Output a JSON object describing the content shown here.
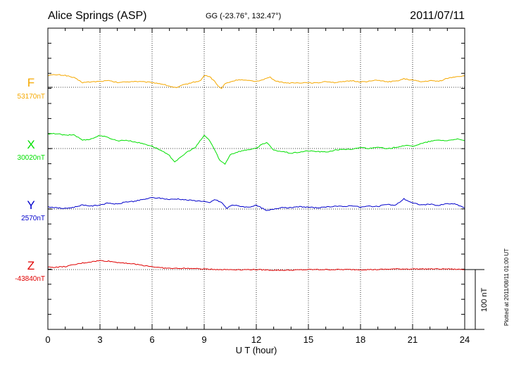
{
  "header": {
    "station": "Alice Springs (ASP)",
    "coords": "GG (-23.76°, 132.47°)",
    "date": "2011/07/11"
  },
  "side_note": "Plotted at 2011/08/11 01:00 UT",
  "chart_data": {
    "type": "line",
    "title": "Alice Springs (ASP)",
    "xlabel": "U T (hour)",
    "xlim": [
      0,
      24
    ],
    "x_ticks": [
      "0",
      "3",
      "6",
      "9",
      "12",
      "15",
      "18",
      "21",
      "24"
    ],
    "grid": true,
    "scale_bar": {
      "label": "100 nT",
      "value_nT": 100
    },
    "series": [
      {
        "name": "F",
        "baseline_label": "53170nT",
        "color": "#f5a800",
        "baseline_nT": 53170,
        "points": [
          [
            0,
            20
          ],
          [
            0.5,
            21
          ],
          [
            1,
            20
          ],
          [
            1.5,
            16
          ],
          [
            2,
            8
          ],
          [
            2.5,
            9
          ],
          [
            3,
            10
          ],
          [
            3.5,
            11
          ],
          [
            4,
            8
          ],
          [
            4.5,
            9
          ],
          [
            5,
            10
          ],
          [
            5.5,
            9
          ],
          [
            6,
            8
          ],
          [
            6.5,
            6
          ],
          [
            7,
            2
          ],
          [
            7.4,
            -1
          ],
          [
            7.8,
            4
          ],
          [
            8.3,
            8
          ],
          [
            8.8,
            11
          ],
          [
            9,
            20
          ],
          [
            9.3,
            18
          ],
          [
            9.6,
            10
          ],
          [
            9.8,
            2
          ],
          [
            10,
            -2
          ],
          [
            10.2,
            6
          ],
          [
            10.5,
            9
          ],
          [
            11,
            13
          ],
          [
            11.5,
            11
          ],
          [
            12,
            10
          ],
          [
            12.5,
            14
          ],
          [
            12.8,
            17
          ],
          [
            13,
            12
          ],
          [
            13.5,
            8
          ],
          [
            14,
            7
          ],
          [
            15,
            8
          ],
          [
            15.5,
            7
          ],
          [
            16,
            10
          ],
          [
            16.5,
            8
          ],
          [
            17,
            9
          ],
          [
            17.5,
            11
          ],
          [
            18,
            9
          ],
          [
            18.5,
            10
          ],
          [
            19,
            12
          ],
          [
            19.5,
            9
          ],
          [
            20,
            10
          ],
          [
            20.5,
            14
          ],
          [
            21,
            12
          ],
          [
            21.5,
            9
          ],
          [
            22,
            11
          ],
          [
            22.5,
            10
          ],
          [
            23,
            15
          ],
          [
            23.5,
            18
          ],
          [
            24,
            19
          ]
        ]
      },
      {
        "name": "X",
        "baseline_label": "30020nT",
        "color": "#00e000",
        "baseline_nT": 30020,
        "points": [
          [
            0,
            24
          ],
          [
            0.5,
            25
          ],
          [
            1,
            22
          ],
          [
            1.5,
            23
          ],
          [
            2,
            14
          ],
          [
            2.5,
            16
          ],
          [
            3,
            22
          ],
          [
            3.5,
            18
          ],
          [
            4,
            13
          ],
          [
            4.5,
            14
          ],
          [
            5,
            11
          ],
          [
            5.5,
            8
          ],
          [
            6,
            4
          ],
          [
            6.5,
            -3
          ],
          [
            7,
            -12
          ],
          [
            7.3,
            -22
          ],
          [
            7.6,
            -16
          ],
          [
            8,
            -6
          ],
          [
            8.5,
            2
          ],
          [
            9,
            22
          ],
          [
            9.3,
            14
          ],
          [
            9.6,
            -2
          ],
          [
            9.9,
            -20
          ],
          [
            10.2,
            -26
          ],
          [
            10.5,
            -10
          ],
          [
            11,
            -5
          ],
          [
            11.5,
            -2
          ],
          [
            12,
            0
          ],
          [
            12.3,
            7
          ],
          [
            12.6,
            10
          ],
          [
            13,
            -3
          ],
          [
            13.5,
            -5
          ],
          [
            14,
            -8
          ],
          [
            15,
            -4
          ],
          [
            16,
            -6
          ],
          [
            16.5,
            -3
          ],
          [
            17,
            -1
          ],
          [
            17.5,
            -2
          ],
          [
            18,
            2
          ],
          [
            18.5,
            0
          ],
          [
            19,
            3
          ],
          [
            19.5,
            -1
          ],
          [
            20,
            2
          ],
          [
            20.5,
            5
          ],
          [
            21,
            4
          ],
          [
            21.5,
            8
          ],
          [
            22,
            12
          ],
          [
            22.5,
            14
          ],
          [
            23,
            13
          ],
          [
            23.5,
            16
          ],
          [
            24,
            13
          ]
        ]
      },
      {
        "name": "Y",
        "baseline_label": "2570nT",
        "color": "#0000cc",
        "baseline_nT": 2570,
        "points": [
          [
            0,
            4
          ],
          [
            0.5,
            2
          ],
          [
            1,
            1
          ],
          [
            1.5,
            3
          ],
          [
            2,
            7
          ],
          [
            2.5,
            5
          ],
          [
            3,
            7
          ],
          [
            3.5,
            10
          ],
          [
            4,
            8
          ],
          [
            4.5,
            12
          ],
          [
            5,
            13
          ],
          [
            5.5,
            16
          ],
          [
            6,
            19
          ],
          [
            6.5,
            18
          ],
          [
            7,
            16
          ],
          [
            7.5,
            17
          ],
          [
            8,
            15
          ],
          [
            8.5,
            14
          ],
          [
            9,
            13
          ],
          [
            9.3,
            10
          ],
          [
            9.6,
            16
          ],
          [
            10,
            11
          ],
          [
            10.3,
            1
          ],
          [
            10.6,
            7
          ],
          [
            11,
            5
          ],
          [
            11.5,
            3
          ],
          [
            12,
            6
          ],
          [
            12.3,
            2
          ],
          [
            12.6,
            -3
          ],
          [
            13,
            0
          ],
          [
            13.5,
            3
          ],
          [
            14,
            2
          ],
          [
            14.5,
            4
          ],
          [
            15,
            3
          ],
          [
            15.5,
            2
          ],
          [
            16,
            3
          ],
          [
            16.5,
            5
          ],
          [
            17,
            4
          ],
          [
            17.5,
            6
          ],
          [
            18,
            3
          ],
          [
            18.5,
            5
          ],
          [
            19,
            4
          ],
          [
            19.5,
            8
          ],
          [
            20,
            6
          ],
          [
            20.5,
            17
          ],
          [
            21,
            10
          ],
          [
            21.5,
            7
          ],
          [
            22,
            8
          ],
          [
            22.5,
            6
          ],
          [
            23,
            9
          ],
          [
            23.5,
            8
          ],
          [
            24,
            2
          ]
        ]
      },
      {
        "name": "Z",
        "baseline_label": "-43840nT",
        "color": "#e00000",
        "baseline_nT": -43840,
        "points": [
          [
            0,
            4
          ],
          [
            0.5,
            4
          ],
          [
            1,
            5
          ],
          [
            1.5,
            8
          ],
          [
            2,
            11
          ],
          [
            2.5,
            13
          ],
          [
            3,
            15
          ],
          [
            3.5,
            14
          ],
          [
            4,
            12
          ],
          [
            4.5,
            11
          ],
          [
            5,
            9
          ],
          [
            5.5,
            7
          ],
          [
            6,
            5
          ],
          [
            6.5,
            3
          ],
          [
            7,
            2
          ],
          [
            8,
            2
          ],
          [
            9,
            1
          ],
          [
            10,
            0
          ],
          [
            11,
            0
          ],
          [
            12,
            0
          ],
          [
            13,
            -1
          ],
          [
            14,
            -1
          ],
          [
            15,
            0
          ],
          [
            16,
            0
          ],
          [
            17,
            0
          ],
          [
            18,
            0
          ],
          [
            19,
            0
          ],
          [
            20,
            1
          ],
          [
            21,
            1
          ],
          [
            22,
            1
          ],
          [
            23,
            1
          ],
          [
            24,
            0
          ]
        ]
      }
    ]
  }
}
